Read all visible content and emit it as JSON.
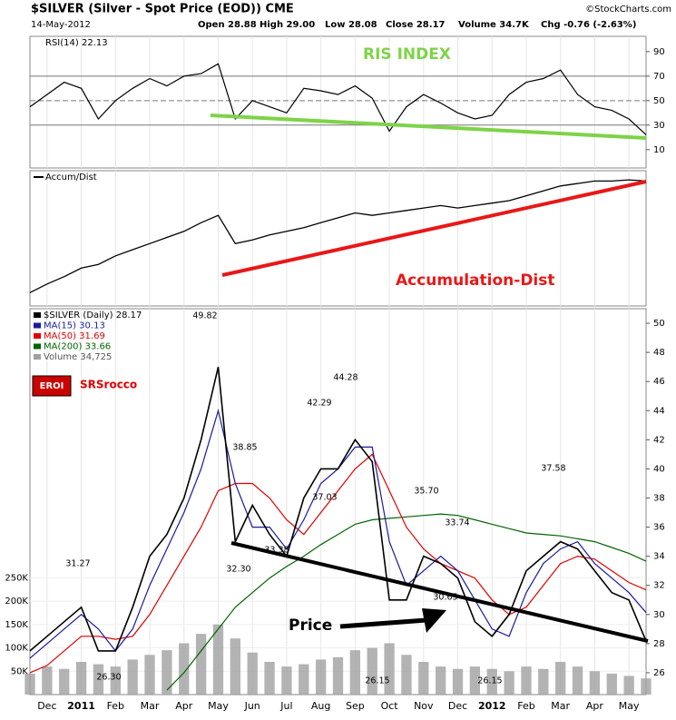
{
  "header": {
    "title": "$SILVER (Silver - Spot Price (EOD)) CME",
    "copyright": "©StockCharts.com",
    "date": "14-May-2012",
    "quote": [
      "Open 28.88",
      "High 29.00",
      "Low 28.08",
      "Close 28.17",
      "Volume 34.7K",
      "Chg -0.76 (-2.63%)"
    ]
  },
  "categories": [
    null,
    "Dec",
    null,
    "2011",
    null,
    "Feb",
    null,
    "Mar",
    null,
    "Apr",
    null,
    "May",
    null,
    "Jun",
    null,
    "Jul",
    null,
    "Aug",
    null,
    "Sep",
    null,
    "Oct",
    null,
    "Nov",
    null,
    "Dec",
    null,
    "2012",
    null,
    "Feb",
    null,
    "Mar",
    null,
    "Apr",
    null,
    "May",
    null
  ],
  "chart_data": [
    {
      "type": "line",
      "annotation": "RIS INDEX",
      "ylim": [
        -5,
        102.5
      ],
      "yticks": [
        90,
        70,
        50,
        30,
        10
      ],
      "levels": [
        70,
        50,
        30
      ],
      "series": [
        {
          "name": "RSI(14) 22.13",
          "color": "#000000",
          "values": [
            45,
            55,
            65,
            60,
            35,
            50,
            60,
            68,
            62,
            70,
            72,
            80,
            35,
            50,
            45,
            40,
            60,
            58,
            55,
            62,
            52,
            25,
            45,
            55,
            48,
            40,
            35,
            38,
            55,
            65,
            68,
            75,
            55,
            45,
            42,
            35,
            22.13
          ]
        }
      ]
    },
    {
      "type": "line",
      "annotation": "Accumulation-Dist",
      "ylim": [
        0,
        100
      ],
      "series": [
        {
          "name": "Accum/Dist",
          "color": "#000000",
          "values": [
            5,
            12,
            18,
            25,
            28,
            35,
            40,
            45,
            50,
            55,
            62,
            68,
            45,
            48,
            52,
            55,
            58,
            62,
            66,
            70,
            68,
            70,
            72,
            74,
            76,
            74,
            76,
            78,
            80,
            84,
            88,
            92,
            94,
            96,
            96,
            97,
            96
          ]
        }
      ]
    },
    {
      "type": "line",
      "ylim": [
        24.5,
        51
      ],
      "yticks": [
        26,
        28,
        30,
        32,
        34,
        36,
        38,
        40,
        42,
        44,
        46,
        48,
        50
      ],
      "y2lim": [
        0,
        826000
      ],
      "y2ticks": [
        {
          "value": 50000,
          "label": "50K"
        },
        {
          "value": 100000,
          "label": "100K"
        },
        {
          "value": 150000,
          "label": "150K"
        },
        {
          "value": 200000,
          "label": "200K"
        },
        {
          "value": 250000,
          "label": "250K"
        }
      ],
      "series": [
        {
          "name": "Volume 34,725",
          "color": "#a0a0a0",
          "axis": "y2",
          "values": [
            45000,
            60000,
            55000,
            70000,
            65000,
            60000,
            75000,
            85000,
            95000,
            110000,
            130000,
            150000,
            120000,
            90000,
            70000,
            60000,
            65000,
            75000,
            80000,
            95000,
            100000,
            110000,
            85000,
            70000,
            60000,
            55000,
            60000,
            55000,
            50000,
            60000,
            55000,
            70000,
            60000,
            50000,
            45000,
            40000,
            34725
          ]
        },
        {
          "name": "MA(200) 33.66",
          "color": "#006400",
          "values": [
            null,
            null,
            null,
            null,
            null,
            null,
            null,
            null,
            24.8,
            26,
            27.5,
            29,
            30.5,
            31.5,
            32.5,
            33.3,
            34,
            34.8,
            35.5,
            36.2,
            36.5,
            36.6,
            36.7,
            36.8,
            36.9,
            36.8,
            36.5,
            36.2,
            35.9,
            35.6,
            35.5,
            35.4,
            35.2,
            35,
            34.6,
            34.2,
            33.66
          ]
        },
        {
          "name": "MA(50) 31.69",
          "color": "#e00000",
          "values": [
            26,
            26.5,
            27.5,
            28.5,
            28.5,
            28.3,
            28.5,
            30,
            32,
            34,
            36,
            38.5,
            39,
            39,
            38,
            36.5,
            35.5,
            37,
            38.5,
            40,
            41,
            38.5,
            36,
            34.5,
            33.5,
            33,
            32.5,
            31,
            30,
            30.5,
            32,
            33.5,
            34,
            33.8,
            33,
            32.2,
            31.69
          ]
        },
        {
          "name": "MA(15) 30.13",
          "color": "#1a1aa0",
          "values": [
            27,
            28,
            29,
            30,
            29,
            27.5,
            29,
            32,
            34.5,
            37,
            40,
            44,
            39,
            36,
            36,
            34.5,
            36.5,
            39,
            40,
            41.5,
            41.5,
            35,
            32,
            33,
            34,
            33,
            31,
            29,
            28.5,
            31.5,
            33.5,
            34.5,
            35,
            33.5,
            32.5,
            31.5,
            30.13
          ]
        },
        {
          "name": "$SILVER (Daily) 28.17",
          "color": "#000000",
          "values": [
            27.5,
            28.5,
            29.5,
            30.5,
            27.5,
            27.5,
            30.5,
            34,
            35.5,
            38,
            42,
            47,
            35,
            37.5,
            35.5,
            34,
            38,
            40,
            40,
            42,
            40.5,
            31,
            31,
            34,
            33.5,
            32.5,
            29.5,
            28.5,
            30,
            33,
            34,
            35,
            34.5,
            33,
            31.5,
            31,
            28.17
          ]
        }
      ],
      "price_labels": [
        "49.82",
        "31.27",
        "26.30",
        "38.85",
        "32.30",
        "33.38",
        "42.29",
        "37.03",
        "44.28",
        "35.70",
        "33.74",
        "30.65",
        "26.15",
        "26.15",
        "37.58"
      ],
      "annotation": "Price",
      "logo": "EROI",
      "brand": "SRSrocco",
      "grid": true
    }
  ]
}
